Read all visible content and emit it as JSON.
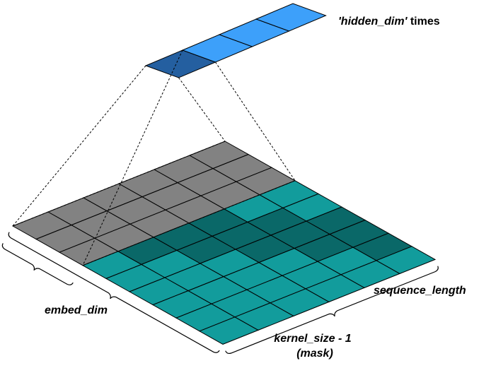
{
  "labels": {
    "output_name": "'hidden_dim'",
    "output_suffix": "times",
    "embed_dim": "embed_dim",
    "sequence_length": "sequence_length",
    "kernel_size": "kernel_size - 1",
    "mask": "(mask)"
  },
  "grid": {
    "rows": 6,
    "cols": 9,
    "gray_cols": 3,
    "kernel_size": 3
  },
  "output_row": {
    "cells": 4,
    "highlighted_index": 0
  },
  "colors": {
    "gray": "#828282",
    "teal": "#129c9c",
    "teal_dark": "#0a6868",
    "blue": "#3da0fa",
    "blue_dark": "#245fa0",
    "line": "#000000"
  }
}
